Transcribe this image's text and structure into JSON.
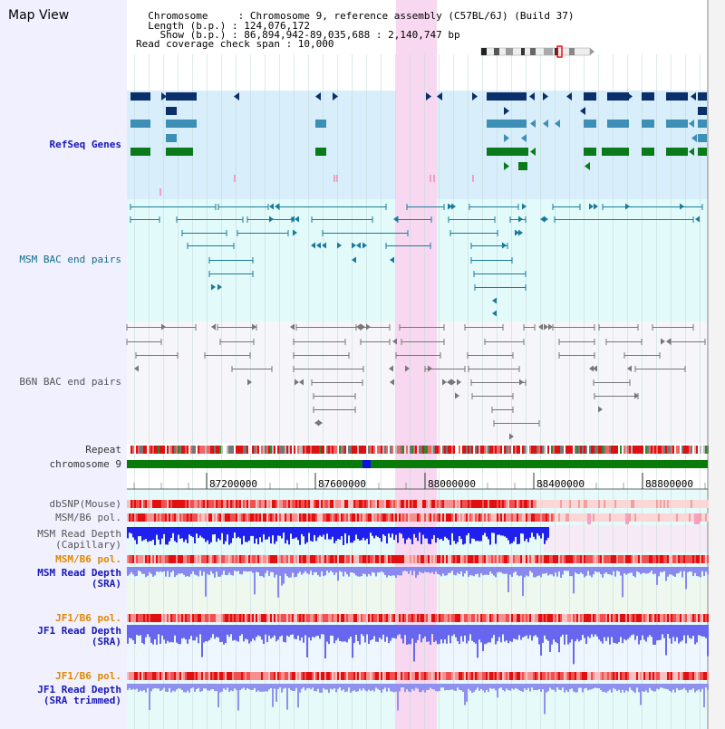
{
  "title": "Map View",
  "info": {
    "line1": "  Chromosome     : Chromosome 9, reference assembly (C57BL/6J) (Build 37)",
    "line2": "  Length (b.p.) : 124,076,172",
    "line3": "    Show (b.p.) : 86,894,942-89,035,688 : 2,140,747 bp",
    "line4": "Read coverage check span : 10,000"
  },
  "tracks": {
    "refseq": "RefSeq Genes",
    "msm_bac": "MSM BAC end pairs",
    "b6n_bac": "B6N BAC end pairs",
    "repeat": "Repeat",
    "chromosome": "chromosome 9",
    "dbsnp": "dbSNP(Mouse)",
    "msm_b6_pol": "MSM/B6 pol.",
    "msm_depth_cap_1": "MSM Read Depth",
    "msm_depth_cap_2": "(Capillary)",
    "msm_b6_pol_2": "MSM/B6 pol.",
    "msm_depth_sra_1": "MSM Read Depth",
    "msm_depth_sra_2": "(SRA)",
    "jf1_b6_pol": "JF1/B6 pol.",
    "jf1_depth_sra_1": "JF1 Read Depth",
    "jf1_depth_sra_2": "(SRA)",
    "jf1_b6_pol_2": "JF1/B6 pol.",
    "jf1_depth_trim_1": "JF1 Read Depth",
    "jf1_depth_trim_2": "(SRA trimmed)"
  },
  "axis": {
    "ticks": [
      "87200000",
      "87600000",
      "88000000",
      "88400000",
      "88800000"
    ]
  },
  "colors": {
    "highlight": "#f8d8f0",
    "refseq_bg": "#d8eefa",
    "refseq_dark": "#0a2f6a",
    "refseq_mid": "#3d8fb5",
    "refseq_green": "#0a7a1a",
    "chrom": "#0a7a0a"
  }
}
